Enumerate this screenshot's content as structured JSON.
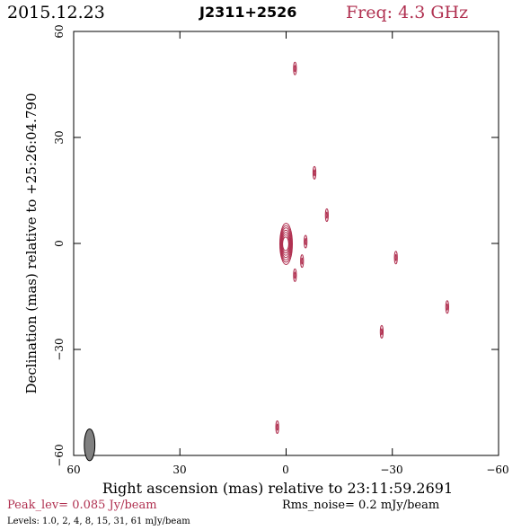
{
  "header": {
    "date": "2015.12.23",
    "source": "J2311+2526",
    "freq": "Freq: 4.3 GHz"
  },
  "axes": {
    "xlabel": "Right ascension (mas) relative to 23:11:59.2691",
    "ylabel": "Declination (mas) relative to +25:26:04.790",
    "xticks": [
      "60",
      "30",
      "0",
      "−30",
      "−60"
    ],
    "yticks": [
      "60",
      "30",
      "0",
      "−30",
      "−60"
    ]
  },
  "footer": {
    "peak": "Peak_lev=  0.085 Jy/beam",
    "rms": "Rms_noise=   0.2 mJy/beam",
    "levels": "Levels: 1.0,    2,    4,    8,   15,   31,   61 mJy/beam"
  },
  "colors": {
    "contour": "#b03050",
    "beam": "#808080",
    "text": "#000000"
  },
  "chart_data": {
    "type": "contour",
    "xlim": [
      60,
      -60
    ],
    "ylim": [
      -60,
      60
    ],
    "x_direction": "reversed",
    "grid": false,
    "levels_mJy": [
      1.0,
      2,
      4,
      8,
      15,
      31,
      61
    ],
    "peak_Jy_per_beam": 0.085,
    "rms_mJy_per_beam": 0.2,
    "core": {
      "x": 0,
      "y": 0,
      "nested_levels": 7
    },
    "components": [
      {
        "x": -2.5,
        "y": 49.5
      },
      {
        "x": -8,
        "y": 20
      },
      {
        "x": -11.5,
        "y": 8
      },
      {
        "x": -5.5,
        "y": 0.5
      },
      {
        "x": -4.5,
        "y": -5
      },
      {
        "x": -2.5,
        "y": -9
      },
      {
        "x": -31,
        "y": -4
      },
      {
        "x": -27,
        "y": -25
      },
      {
        "x": -45.5,
        "y": -18
      },
      {
        "x": 2.5,
        "y": -52
      }
    ],
    "beam": {
      "x": 55.5,
      "y": -57,
      "major_mas": 4.5,
      "minor_mas": 1.5,
      "pa_deg": 0
    }
  }
}
